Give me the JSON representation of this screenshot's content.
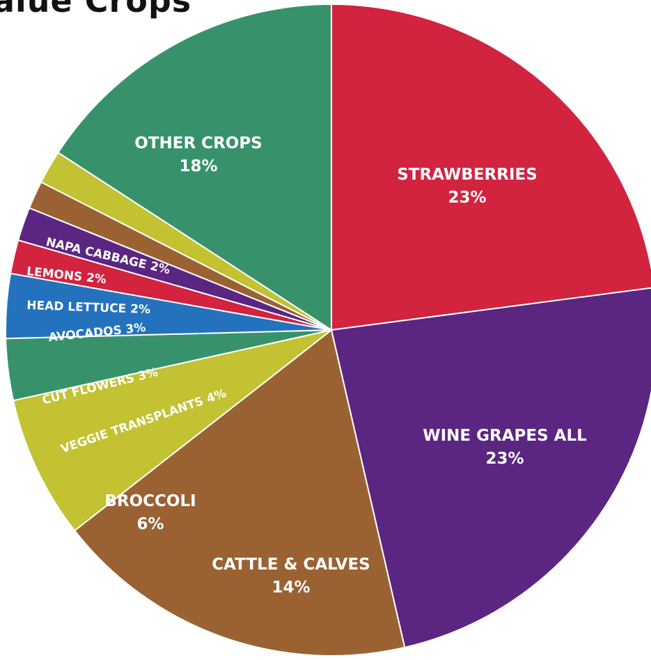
{
  "chart_data": {
    "type": "pie",
    "title": "alue Crops",
    "slices": [
      {
        "label": "STRAWBERRIES",
        "value": 23,
        "value_label": "23%",
        "color": "#D2233F"
      },
      {
        "label": "WINE GRAPES ALL",
        "value": 23,
        "value_label": "23%",
        "color": "#5B2582"
      },
      {
        "label": "CATTLE & CALVES",
        "value": 14,
        "value_label": "14%",
        "color": "#9A6233"
      },
      {
        "label": "BROCCOLI",
        "value": 6,
        "value_label": "6%",
        "color": "#C2C232"
      },
      {
        "label": "VEGGIE TRANSPLANTS",
        "value": 4,
        "value_label": "4%",
        "color": "#37926C"
      },
      {
        "label": "CUT FLOWERS",
        "value": 3,
        "value_label": "3%",
        "color": "#2472BE"
      },
      {
        "label": "AVOCADOS",
        "value": 3,
        "value_label": "3%",
        "color": "#D2233F"
      },
      {
        "label": "HEAD LETTUCE",
        "value": 2,
        "value_label": "2%",
        "color": "#5B2582"
      },
      {
        "label": "LEMONS",
        "value": 2,
        "value_label": "2%",
        "color": "#9A6233"
      },
      {
        "label": "NAPA CABBAGE",
        "value": 2,
        "value_label": "2%",
        "color": "#C2C232"
      },
      {
        "label": "OTHER CROPS",
        "value": 18,
        "value_label": "18%",
        "color": "#37926C"
      }
    ]
  }
}
